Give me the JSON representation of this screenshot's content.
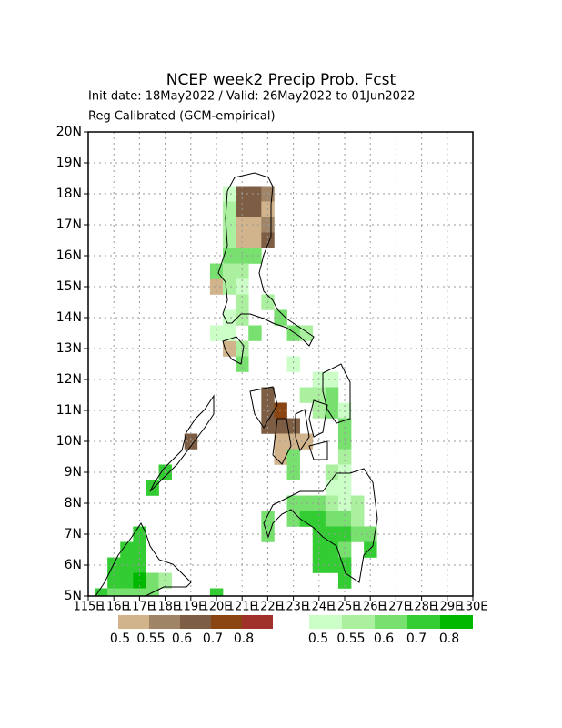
{
  "chart_data": {
    "type": "heatmap",
    "title": "NCEP week2 Precip Prob. Fcst",
    "subtitle": "Init date: 18May2022 / Valid: 26May2022 to 01Jun2022",
    "note": "Reg Calibrated (GCM-empirical)",
    "xlim": [
      115,
      130
    ],
    "ylim": [
      5,
      20
    ],
    "xticks": [
      {
        "value": 115,
        "label": "115E"
      },
      {
        "value": 116,
        "label": "116E"
      },
      {
        "value": 117,
        "label": "117E"
      },
      {
        "value": 118,
        "label": "118E"
      },
      {
        "value": 119,
        "label": "119E"
      },
      {
        "value": 120,
        "label": "120E"
      },
      {
        "value": 121,
        "label": "121E"
      },
      {
        "value": 122,
        "label": "122E"
      },
      {
        "value": 123,
        "label": "123E"
      },
      {
        "value": 124,
        "label": "124E"
      },
      {
        "value": 125,
        "label": "125E"
      },
      {
        "value": 126,
        "label": "126E"
      },
      {
        "value": 127,
        "label": "127E"
      },
      {
        "value": 128,
        "label": "128E"
      },
      {
        "value": 129,
        "label": "129E"
      },
      {
        "value": 130,
        "label": "130E"
      }
    ],
    "yticks": [
      {
        "value": 5,
        "label": "5N"
      },
      {
        "value": 6,
        "label": "6N"
      },
      {
        "value": 7,
        "label": "7N"
      },
      {
        "value": 8,
        "label": "8N"
      },
      {
        "value": 9,
        "label": "9N"
      },
      {
        "value": 10,
        "label": "10N"
      },
      {
        "value": 11,
        "label": "11N"
      },
      {
        "value": 12,
        "label": "12N"
      },
      {
        "value": 13,
        "label": "13N"
      },
      {
        "value": 14,
        "label": "14N"
      },
      {
        "value": 15,
        "label": "15N"
      },
      {
        "value": 16,
        "label": "16N"
      },
      {
        "value": 17,
        "label": "17N"
      },
      {
        "value": 18,
        "label": "18N"
      },
      {
        "value": 19,
        "label": "19N"
      },
      {
        "value": 20,
        "label": "20N"
      }
    ],
    "grid": true,
    "legends": [
      {
        "levels": [
          0.5,
          0.55,
          0.6,
          0.7,
          0.8
        ],
        "colors": [
          "#d2b48c",
          "#a08466",
          "#7d5e44",
          "#8b4513",
          "#a0302a"
        ]
      },
      {
        "levels": [
          0.5,
          0.55,
          0.6,
          0.7,
          0.8
        ],
        "colors": [
          "#ccffc8",
          "#aaf09f",
          "#77e06f",
          "#33cc33",
          "#00b800"
        ]
      }
    ],
    "dry_cells": [
      [
        121,
        18,
        0.6
      ],
      [
        121.5,
        18,
        0.6
      ],
      [
        122,
        18,
        0.55
      ],
      [
        121,
        17.5,
        0.6
      ],
      [
        121.5,
        17.5,
        0.6
      ],
      [
        122,
        17.5,
        0.5
      ],
      [
        121,
        17,
        0.5
      ],
      [
        121.5,
        17,
        0.5
      ],
      [
        122,
        17,
        0.55
      ],
      [
        121,
        16.5,
        0.5
      ],
      [
        121.5,
        16.5,
        0.5
      ],
      [
        122,
        16.5,
        0.6
      ],
      [
        120,
        15,
        0.5
      ],
      [
        120.5,
        13,
        0.5
      ],
      [
        122,
        11.5,
        0.6
      ],
      [
        122,
        11,
        0.6
      ],
      [
        122.5,
        11,
        0.7
      ],
      [
        122,
        10.5,
        0.6
      ],
      [
        122.5,
        10.5,
        0.6
      ],
      [
        123,
        10.5,
        0.6
      ],
      [
        123,
        10,
        0.5
      ],
      [
        123.5,
        10,
        0.5
      ],
      [
        122.5,
        10,
        0.5
      ],
      [
        122.5,
        9.5,
        0.5
      ],
      [
        119,
        10,
        0.6
      ]
    ],
    "wet_cells": [
      [
        120.5,
        18,
        0.5
      ],
      [
        120.5,
        17.5,
        0.55
      ],
      [
        120.5,
        17,
        0.55
      ],
      [
        120.5,
        16.5,
        0.55
      ],
      [
        120.5,
        16,
        0.6
      ],
      [
        121,
        16,
        0.6
      ],
      [
        121.5,
        16,
        0.6
      ],
      [
        120,
        15.5,
        0.6
      ],
      [
        120.5,
        15.5,
        0.55
      ],
      [
        121,
        15.5,
        0.55
      ],
      [
        120.5,
        15,
        0.55
      ],
      [
        121,
        15,
        0.5
      ],
      [
        121,
        14.5,
        0.55
      ],
      [
        122,
        14.5,
        0.55
      ],
      [
        120.5,
        14,
        0.5
      ],
      [
        121,
        14,
        0.55
      ],
      [
        122.5,
        14,
        0.6
      ],
      [
        120,
        13.5,
        0.5
      ],
      [
        120.5,
        13.5,
        0.5
      ],
      [
        121.5,
        13.5,
        0.6
      ],
      [
        123,
        13.5,
        0.6
      ],
      [
        123.5,
        13.5,
        0.55
      ],
      [
        121,
        13,
        0.55
      ],
      [
        121,
        12.5,
        0.6
      ],
      [
        123,
        12.5,
        0.5
      ],
      [
        124,
        12,
        0.5
      ],
      [
        124.5,
        12,
        0.5
      ],
      [
        123.5,
        11.5,
        0.55
      ],
      [
        124,
        11.5,
        0.55
      ],
      [
        124.5,
        11.5,
        0.6
      ],
      [
        124,
        11,
        0.55
      ],
      [
        124.5,
        11,
        0.6
      ],
      [
        125,
        11,
        0.5
      ],
      [
        125,
        10.5,
        0.6
      ],
      [
        125,
        10,
        0.6
      ],
      [
        123,
        9.5,
        0.6
      ],
      [
        125,
        9.5,
        0.55
      ],
      [
        123,
        9,
        0.6
      ],
      [
        124.5,
        9,
        0.55
      ],
      [
        125,
        9,
        0.5
      ],
      [
        124.5,
        8.5,
        0.5
      ],
      [
        125,
        8.5,
        0.5
      ],
      [
        123,
        8,
        0.6
      ],
      [
        123.5,
        8,
        0.6
      ],
      [
        124,
        8,
        0.6
      ],
      [
        124.5,
        8,
        0.55
      ],
      [
        125,
        8,
        0.5
      ],
      [
        125.5,
        8,
        0.55
      ],
      [
        122,
        7.5,
        0.6
      ],
      [
        123,
        7.5,
        0.6
      ],
      [
        123.5,
        7.5,
        0.7
      ],
      [
        124,
        7.5,
        0.7
      ],
      [
        124.5,
        7.5,
        0.6
      ],
      [
        125,
        7.5,
        0.6
      ],
      [
        125.5,
        7.5,
        0.55
      ],
      [
        122,
        7,
        0.6
      ],
      [
        124,
        7,
        0.7
      ],
      [
        124.5,
        7,
        0.7
      ],
      [
        125,
        7,
        0.7
      ],
      [
        125.5,
        7,
        0.6
      ],
      [
        126,
        7,
        0.6
      ],
      [
        124,
        6.5,
        0.7
      ],
      [
        124.5,
        6.5,
        0.7
      ],
      [
        125,
        6.5,
        0.6
      ],
      [
        126,
        6.5,
        0.7
      ],
      [
        124,
        6,
        0.7
      ],
      [
        124.5,
        6,
        0.7
      ],
      [
        125,
        6,
        0.7
      ],
      [
        125,
        5.5,
        0.7
      ],
      [
        117,
        7,
        0.7
      ],
      [
        116.5,
        6.5,
        0.7
      ],
      [
        117,
        6.5,
        0.7
      ],
      [
        116,
        6,
        0.7
      ],
      [
        116.5,
        6,
        0.7
      ],
      [
        117,
        6,
        0.7
      ],
      [
        116,
        5.5,
        0.7
      ],
      [
        116.5,
        5.5,
        0.7
      ],
      [
        117,
        5.5,
        0.8
      ],
      [
        117.5,
        5.5,
        0.6
      ],
      [
        118,
        5.5,
        0.55
      ],
      [
        115.5,
        5,
        0.7
      ],
      [
        116,
        5,
        0.6
      ],
      [
        116.5,
        5,
        0.6
      ],
      [
        117,
        5,
        0.6
      ],
      [
        117.5,
        5,
        0.6
      ],
      [
        118,
        9,
        0.7
      ],
      [
        117.5,
        8.5,
        0.7
      ],
      [
        120,
        5,
        0.7
      ]
    ]
  }
}
